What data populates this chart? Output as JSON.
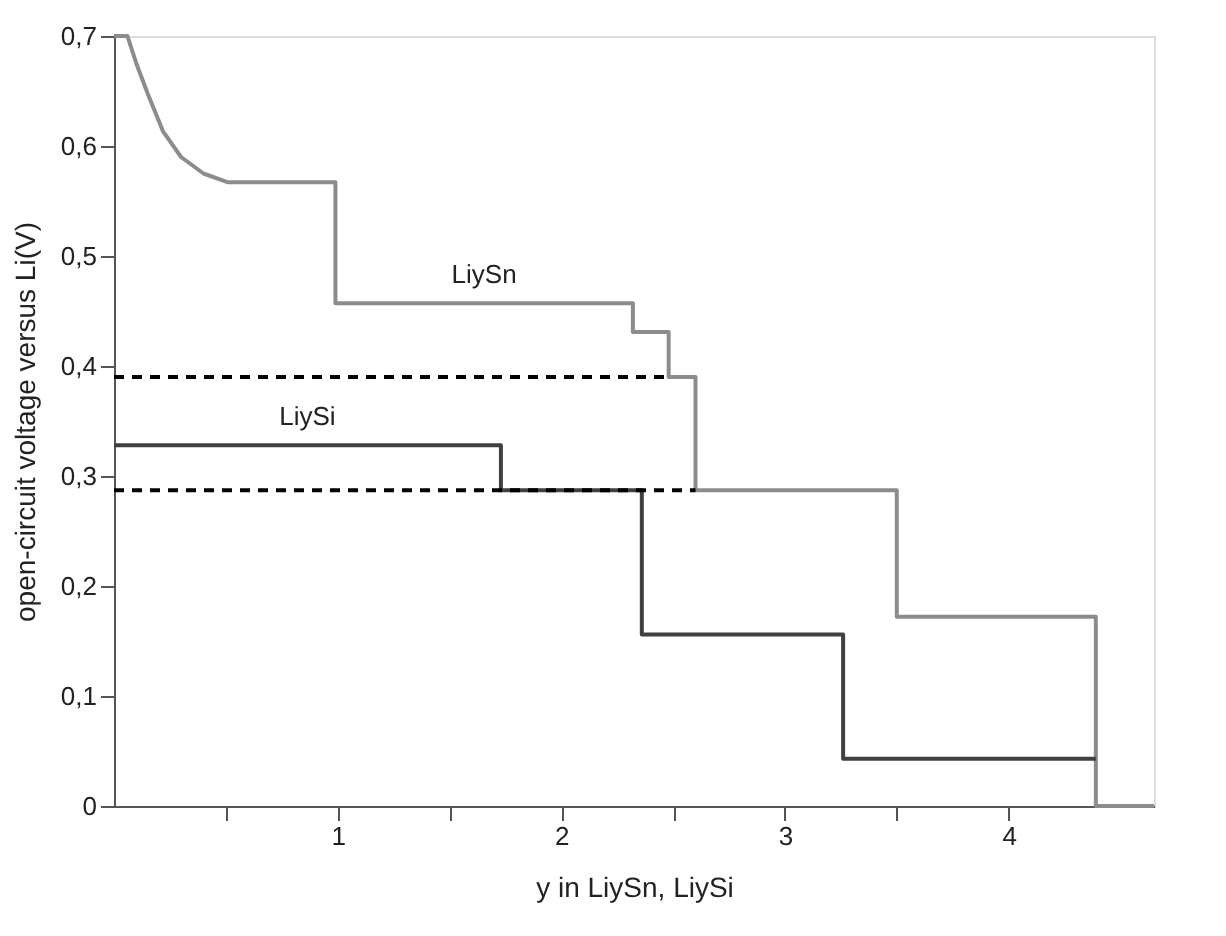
{
  "chart_data": {
    "type": "line",
    "xlabel": "y in LiySn, LiySi",
    "ylabel": "open-circuit voltage versus Li(V)",
    "xlim": [
      0,
      4.65
    ],
    "ylim": [
      0,
      0.7
    ],
    "xticks": [
      {
        "value": 0.5,
        "label": null
      },
      1,
      {
        "value": 1.5,
        "label": null
      },
      2,
      {
        "value": 2.5,
        "label": null
      },
      3,
      {
        "value": 3.5,
        "label": null
      },
      4
    ],
    "yticks": [
      0,
      {
        "value": 0.1,
        "label": "0,1"
      },
      {
        "value": 0.2,
        "label": "0,2"
      },
      {
        "value": 0.3,
        "label": "0,3"
      },
      {
        "value": 0.4,
        "label": "0,4"
      },
      {
        "value": 0.5,
        "label": "0,5"
      },
      {
        "value": 0.6,
        "label": "0,6"
      },
      {
        "value": 0.7,
        "label": "0,7"
      }
    ],
    "grid": false,
    "marker": "none",
    "series": [
      {
        "name": "LiySn",
        "color": "#8c8c8c",
        "line_style": "solid",
        "x": [
          0,
          0.06,
          0.1,
          0.15,
          0.22,
          0.3,
          0.4,
          0.51,
          0.99,
          0.99,
          2.32,
          2.32,
          2.48,
          2.48,
          2.6,
          2.6,
          3.5,
          3.5,
          4.39,
          4.39,
          4.65
        ],
        "values": [
          0.7,
          0.7,
          0.675,
          0.648,
          0.613,
          0.59,
          0.575,
          0.567,
          0.567,
          0.457,
          0.457,
          0.431,
          0.431,
          0.39,
          0.39,
          0.287,
          0.287,
          0.172,
          0.172,
          0,
          0
        ]
      },
      {
        "name": "LiySi",
        "color": "#404040",
        "line_style": "solid",
        "x": [
          0,
          1.73,
          1.73,
          2.36,
          2.36,
          3.26,
          3.26,
          4.39
        ],
        "values": [
          0.328,
          0.328,
          0.287,
          0.287,
          0.156,
          0.156,
          0.043,
          0.043
        ]
      },
      {
        "color": "#000000",
        "line_style": "dashed",
        "x": [
          0,
          2.48
        ],
        "values": [
          0.39,
          0.39
        ]
      },
      {
        "color": "#000000",
        "line_style": "dashed",
        "x": [
          0,
          2.6
        ],
        "values": [
          0.287,
          0.287
        ]
      }
    ]
  }
}
